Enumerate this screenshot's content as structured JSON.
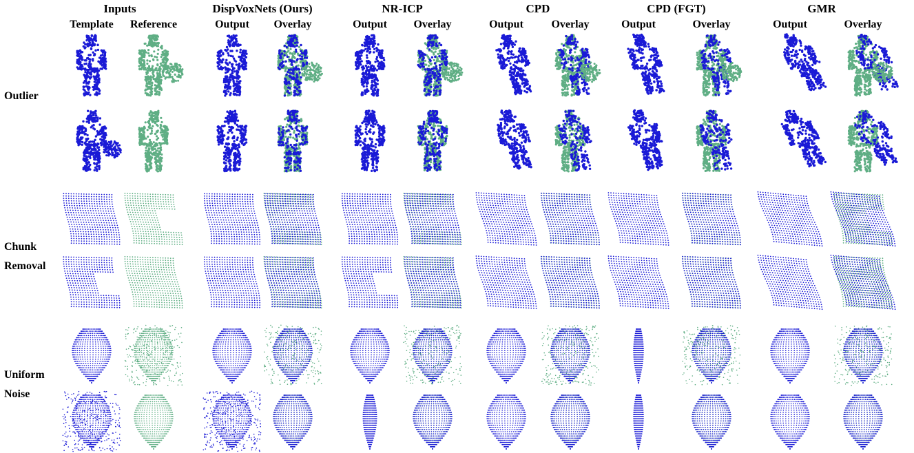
{
  "columns": [
    {
      "title": "Inputs",
      "subs": [
        "Template",
        "Reference"
      ]
    },
    {
      "title": "DispVoxNets (Ours)",
      "subs": [
        "Output",
        "Overlay"
      ]
    },
    {
      "title": "NR-ICP",
      "subs": [
        "Output",
        "Overlay"
      ]
    },
    {
      "title": "CPD",
      "subs": [
        "Output",
        "Overlay"
      ]
    },
    {
      "title": "CPD (FGT)",
      "subs": [
        "Output",
        "Overlay"
      ]
    },
    {
      "title": "GMR",
      "subs": [
        "Output",
        "Overlay"
      ]
    }
  ],
  "row_groups": [
    {
      "label_lines": [
        "Outlier"
      ]
    },
    {
      "label_lines": [
        "Chunk",
        "Removal"
      ]
    },
    {
      "label_lines": [
        "Uniform",
        "Noise"
      ]
    }
  ],
  "colors": {
    "template": "#1a1ad6",
    "reference": "#5fae84",
    "text": "#000000",
    "background": "#ffffff"
  }
}
